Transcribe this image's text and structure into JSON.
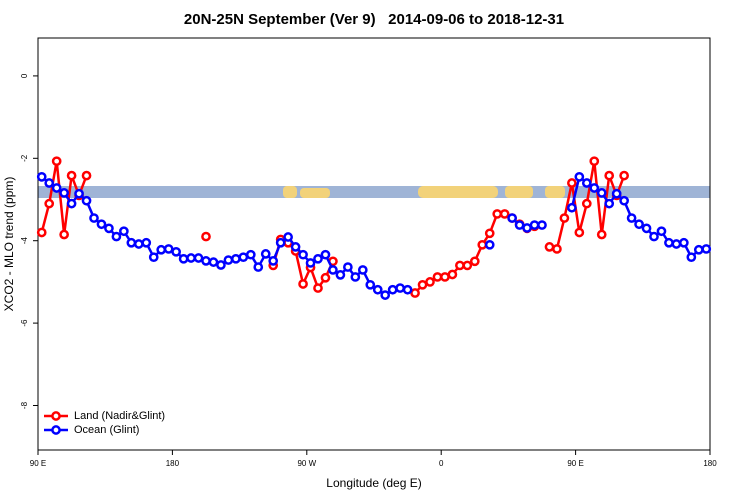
{
  "chart_data": {
    "type": "line",
    "title": "20N-25N September (Ver 9)   2014-09-06 to 2018-12-31",
    "x_label": "Longitude (deg E)",
    "y_label": "XCO2 - MLO trend (ppm)",
    "xlim": [
      90,
      540
    ],
    "ylim": [
      -9.08,
      0.92
    ],
    "xticks": [
      {
        "value": 90,
        "label": "90 E"
      },
      180,
      {
        "value": 270,
        "label": "90 W"
      },
      {
        "value": 360,
        "label": "0"
      },
      {
        "value": 450,
        "label": "90 E"
      },
      {
        "value": 540,
        "label": "180"
      }
    ],
    "yticks": [
      0,
      -2,
      -4,
      -6,
      -8
    ],
    "legend": "bottom-left",
    "x": [
      92.5,
      97.5,
      102.5,
      107.5,
      112.5,
      117.5,
      122.5,
      127.5,
      132.5,
      137.5,
      142.5,
      147.5,
      152.5,
      157.5,
      162.5,
      167.5,
      172.5,
      177.5,
      182.5,
      187.5,
      192.5,
      197.5,
      202.5,
      207.5,
      212.5,
      217.5,
      222.5,
      227.5,
      232.5,
      237.5,
      242.5,
      247.5,
      252.5,
      257.5,
      262.5,
      267.5,
      272.5,
      277.5,
      282.5,
      287.5,
      292.5,
      297.5,
      302.5,
      307.5,
      312.5,
      317.5,
      322.5,
      327.5,
      332.5,
      337.5,
      342.5,
      347.5,
      352.5,
      357.5,
      362.5,
      367.5,
      372.5,
      377.5,
      382.5,
      387.5,
      392.5,
      397.5,
      402.5,
      407.5,
      412.5,
      417.5,
      422.5,
      427.5,
      432.5,
      437.5,
      442.5,
      447.5,
      452.5,
      457.5,
      462.5,
      467.5,
      472.5,
      477.5,
      482.5,
      487.5,
      492.5,
      497.5,
      502.5,
      507.5,
      512.5,
      517.5,
      522.5,
      527.5,
      532.5,
      537.5
    ],
    "series": [
      {
        "name": "Land (Nadir&Glint)",
        "color": "#ff0000",
        "values": [
          -3.8,
          -3.1,
          -2.07,
          -3.85,
          -2.42,
          -2.9,
          -2.42,
          null,
          null,
          null,
          null,
          null,
          null,
          null,
          null,
          null,
          null,
          null,
          null,
          null,
          null,
          null,
          -3.9,
          null,
          null,
          null,
          null,
          null,
          null,
          null,
          null,
          -4.6,
          -3.97,
          -4.05,
          -4.25,
          -5.05,
          -4.65,
          -5.15,
          -4.9,
          -4.5,
          null,
          null,
          null,
          null,
          null,
          null,
          null,
          null,
          null,
          null,
          -5.27,
          -5.07,
          -5.0,
          -4.88,
          -4.88,
          -4.82,
          -4.6,
          -4.6,
          -4.5,
          -4.1,
          -3.82,
          -3.35,
          -3.35,
          -3.45,
          -3.6,
          -3.7,
          -3.65,
          null,
          -4.15,
          -4.2,
          -3.45,
          -2.6,
          -3.8,
          -3.1,
          -2.07,
          -3.85,
          -2.42,
          -2.9,
          -2.42,
          null,
          null,
          null,
          null,
          null,
          null,
          null,
          null,
          null,
          null,
          null
        ]
      },
      {
        "name": "Ocean (Glint)",
        "color": "#0000ff",
        "values": [
          -2.45,
          -2.6,
          -2.72,
          -2.84,
          -3.1,
          -2.86,
          -3.03,
          -3.45,
          -3.6,
          -3.7,
          -3.9,
          -3.77,
          -4.05,
          -4.08,
          -4.05,
          -4.4,
          -4.22,
          -4.2,
          -4.27,
          -4.44,
          -4.42,
          -4.42,
          -4.49,
          -4.52,
          -4.59,
          -4.47,
          -4.44,
          -4.4,
          -4.34,
          -4.64,
          -4.32,
          -4.49,
          -4.05,
          -3.91,
          -4.15,
          -4.34,
          -4.54,
          -4.44,
          -4.34,
          -4.71,
          -4.83,
          -4.64,
          -4.88,
          -4.71,
          -5.07,
          -5.19,
          -5.32,
          -5.19,
          -5.15,
          -5.19,
          null,
          null,
          null,
          null,
          null,
          null,
          null,
          null,
          null,
          null,
          -4.1,
          null,
          null,
          -3.45,
          -3.62,
          -3.69,
          -3.62,
          -3.62,
          null,
          null,
          null,
          -3.2,
          -2.45,
          -2.6,
          -2.72,
          -2.84,
          -3.1,
          -2.86,
          -3.03,
          -3.45,
          -3.6,
          -3.7,
          -3.9,
          -3.77,
          -4.05,
          -4.08,
          -4.05,
          -4.4,
          -4.22,
          -4.2
        ]
      }
    ]
  }
}
